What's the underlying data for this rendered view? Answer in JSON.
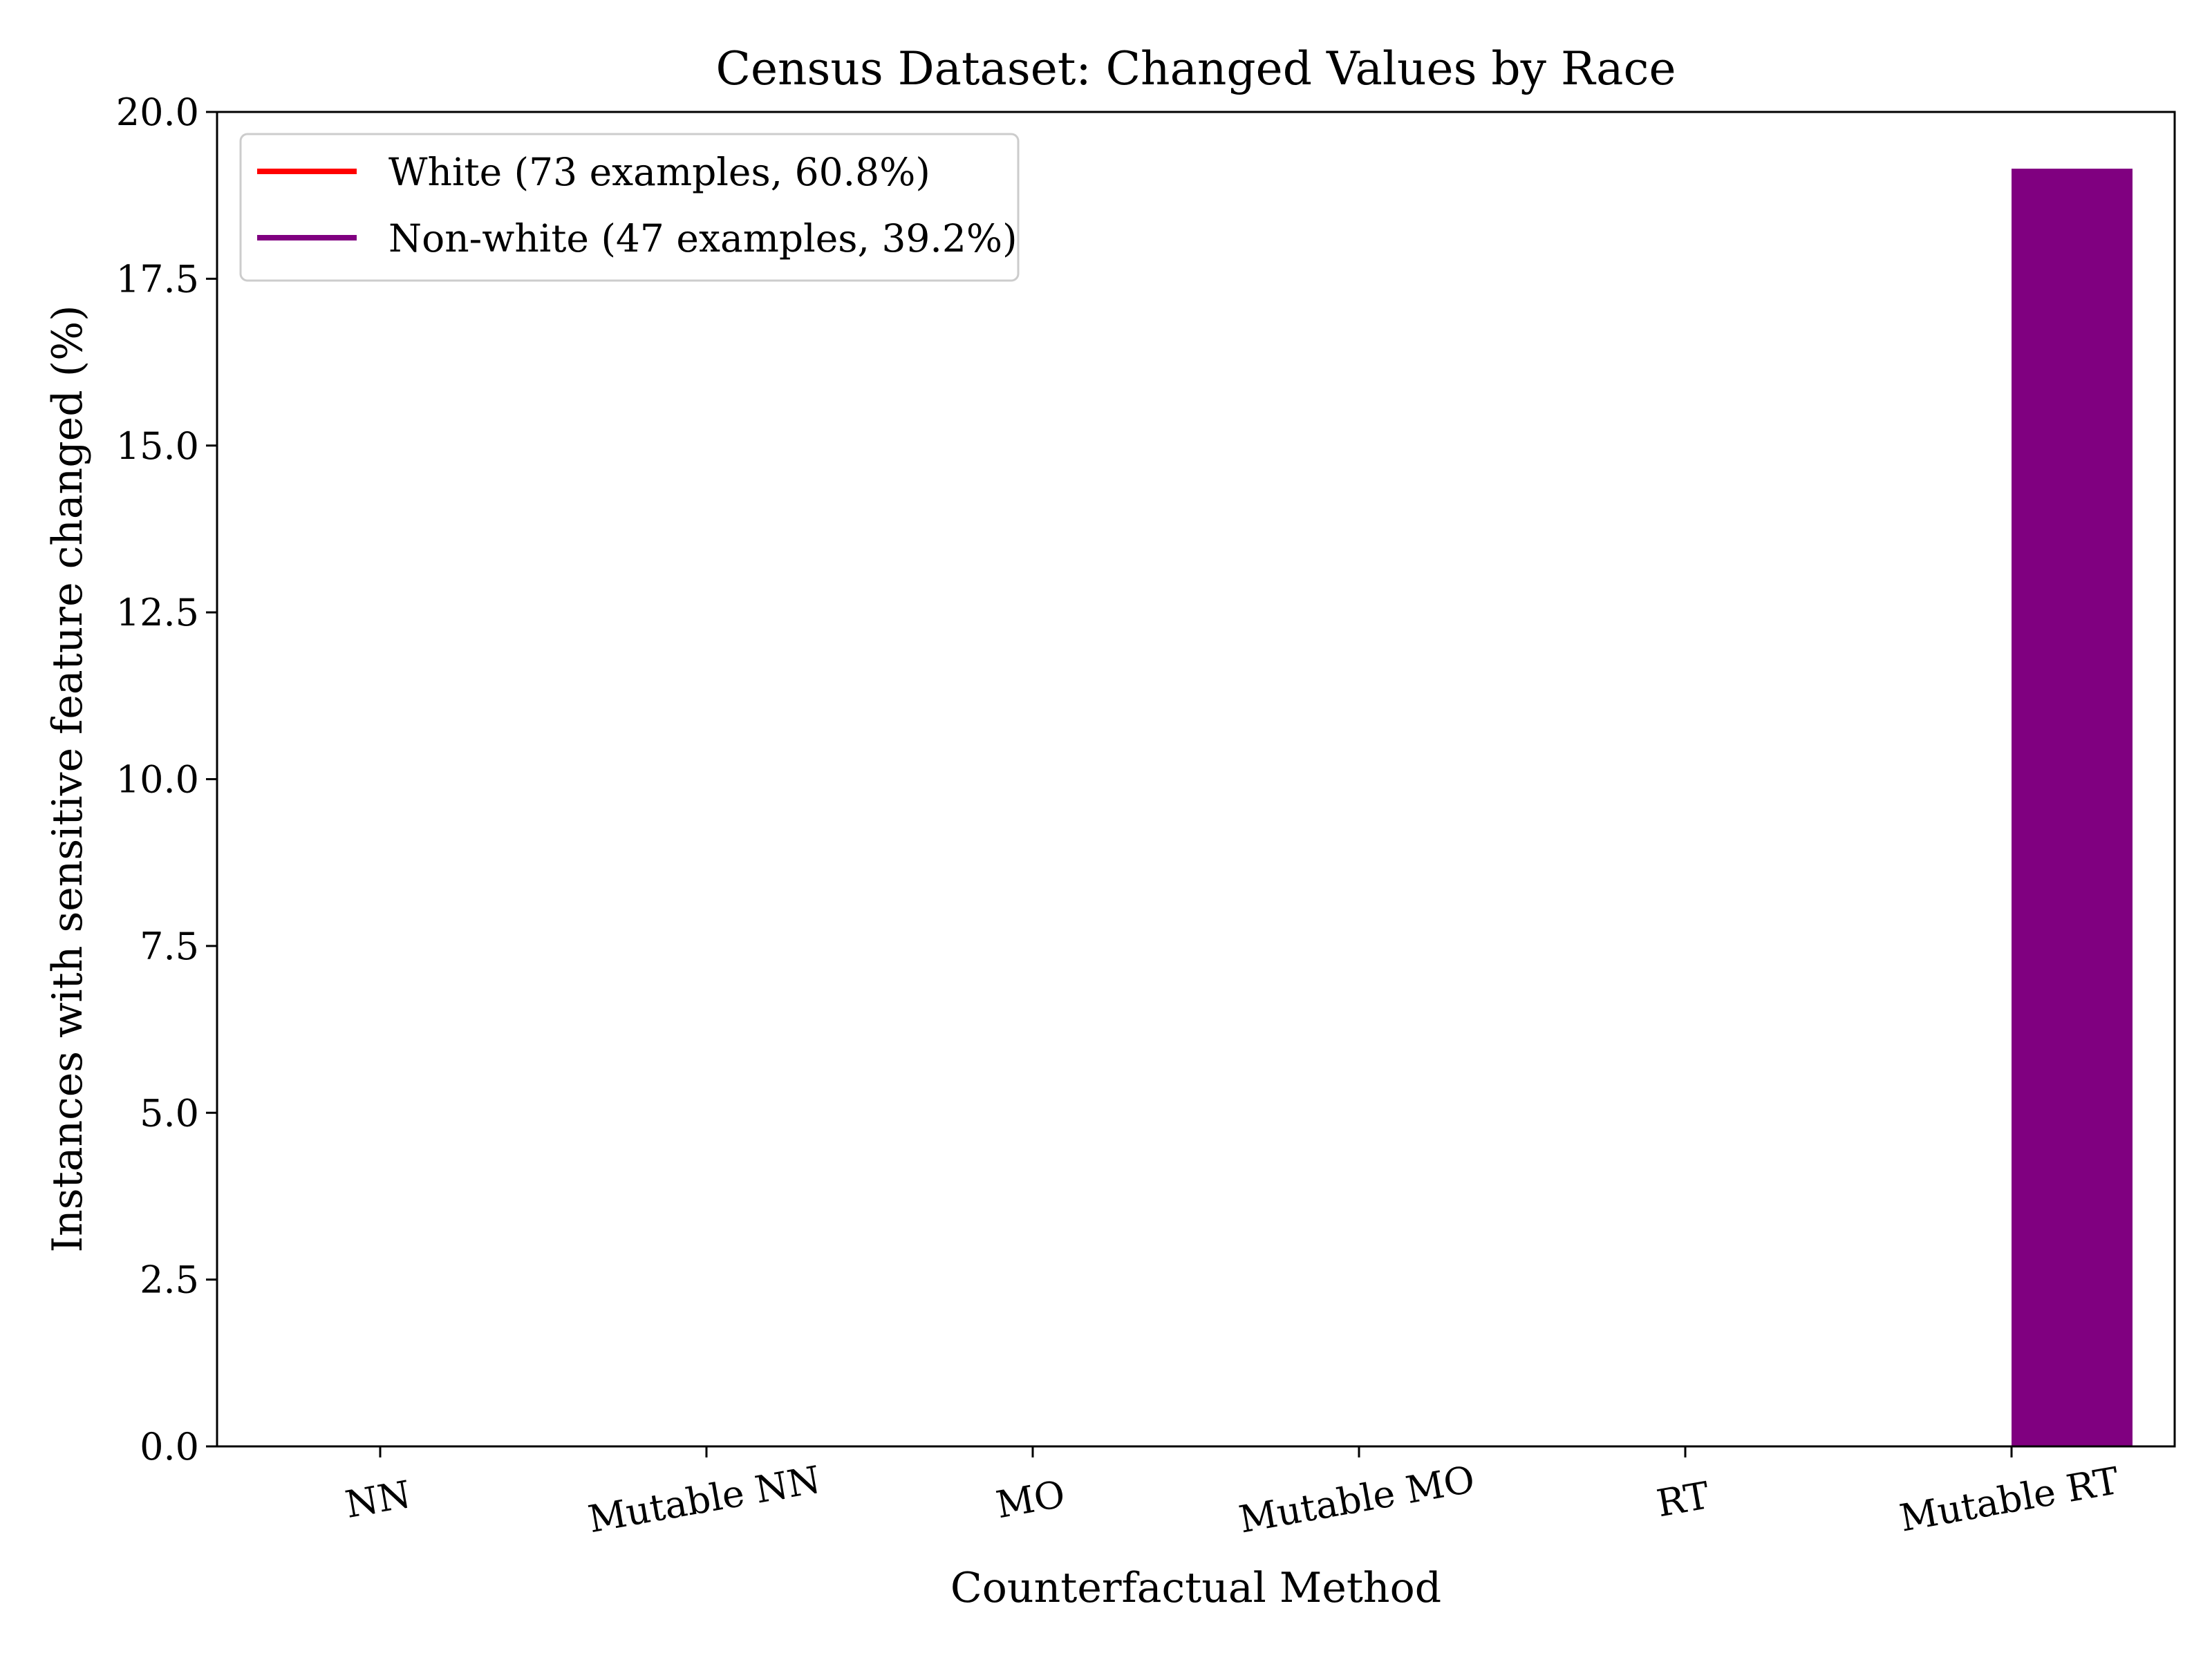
{
  "chart_data": {
    "type": "bar",
    "title": "Census Dataset: Changed Values by Race",
    "xlabel": "Counterfactual Method",
    "ylabel": "Instances with sensitive feature changed (%)",
    "categories": [
      "NN",
      "Mutable NN",
      "MO",
      "Mutable MO",
      "RT",
      "Mutable RT"
    ],
    "series": [
      {
        "name": "White (73 examples, 60.8%)",
        "color": "#ff0000",
        "values": [
          0,
          0,
          0,
          0,
          0,
          0
        ]
      },
      {
        "name": "Non-white (47 examples, 39.2%)",
        "color": "#800080",
        "values": [
          0,
          0,
          0,
          0,
          0,
          19.15
        ]
      }
    ],
    "ylim": [
      0,
      20
    ],
    "yticks": [
      "0.0",
      "2.5",
      "5.0",
      "7.5",
      "10.0",
      "12.5",
      "15.0",
      "17.5",
      "20.0"
    ],
    "grid": false,
    "legend_position": "top-left",
    "xtick_rotation_deg": 10
  }
}
